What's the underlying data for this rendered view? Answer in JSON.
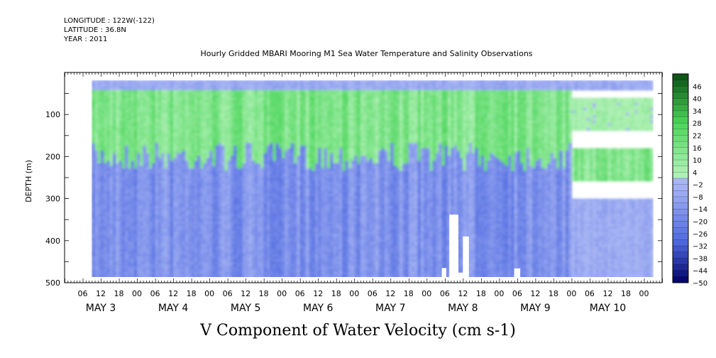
{
  "header": {
    "longitude": "LONGITUDE : 122W(-122)",
    "latitude": "LATITUDE : 36.8N",
    "year": "YEAR : 2011"
  },
  "title": "Hourly Gridded MBARI Mooring M1 Sea Water Temperature and Salinity Observations",
  "bottom_title": "V Component of Water Velocity (cm s-1)",
  "chart_data": {
    "type": "heatmap",
    "title": "Hourly Gridded MBARI Mooring M1 Sea Water Temperature and Salinity Observations",
    "xlabel": "",
    "ylabel": "DEPTH (m)",
    "colorbar_label": "V Component of Water Velocity (cm s-1)",
    "y_reversed": true,
    "ylim": [
      0,
      500
    ],
    "y_ticks": [
      100,
      200,
      300,
      400,
      500
    ],
    "x_start": "2011-05-02T00:00",
    "x_end": "2011-05-10T06:00",
    "data_start": "2011-05-02T09:00",
    "data_end": "2011-05-10T03:00",
    "x_hour_labels": [
      "06",
      "12",
      "18",
      "00",
      "06",
      "12",
      "18",
      "00",
      "06",
      "12",
      "18",
      "00",
      "06",
      "12",
      "18",
      "00",
      "06",
      "12",
      "18",
      "00",
      "06",
      "12",
      "18",
      "00",
      "06",
      "12",
      "18",
      "00",
      "06",
      "12",
      "18",
      "00"
    ],
    "x_day_labels": [
      "MAY  3",
      "MAY  4",
      "MAY  5",
      "MAY  6",
      "MAY  7",
      "MAY  8",
      "MAY  9",
      "MAY 10"
    ],
    "colorbar_ticks": [
      46,
      40,
      34,
      28,
      22,
      16,
      10,
      4,
      -2,
      -8,
      -14,
      -20,
      -26,
      -32,
      -38,
      -44,
      -50
    ],
    "colorbar_range": [
      -50,
      52
    ],
    "colors": {
      "strong_negative": "#000066",
      "mid_negative": "#4f6ae0",
      "weak_negative": "#a9b6f4",
      "weak_positive": "#aff0b5",
      "mid_positive": "#4cd65a",
      "strong_positive": "#0a4f14"
    },
    "depth_bands": [
      {
        "depth_range": [
          20,
          40
        ],
        "sign": "negative",
        "magnitude": "weak",
        "start": "2011-05-02T09:00",
        "end": "2011-05-10T03:00"
      },
      {
        "depth_range": [
          40,
          200
        ],
        "sign": "positive",
        "magnitude": "moderate",
        "start": "2011-05-02T09:00",
        "end": "2011-05-09T00:00"
      },
      {
        "depth_range": [
          200,
          490
        ],
        "sign": "negative",
        "magnitude": "moderate",
        "start": "2011-05-02T09:00",
        "end": "2011-05-09T00:00"
      },
      {
        "depth_range": [
          60,
          140
        ],
        "sign": "positive",
        "magnitude": "weak",
        "start": "2011-05-09T00:00",
        "end": "2011-05-10T03:00"
      },
      {
        "depth_range": [
          180,
          260
        ],
        "sign": "positive",
        "magnitude": "moderate",
        "start": "2011-05-09T00:00",
        "end": "2011-05-10T03:00"
      },
      {
        "depth_range": [
          300,
          490
        ],
        "sign": "negative",
        "magnitude": "weak",
        "start": "2011-05-09T00:00",
        "end": "2011-05-10T03:00"
      }
    ],
    "missing_regions": [
      {
        "start": "2011-05-07T05:00",
        "end": "2011-05-07T06:30",
        "depth_range": [
          465,
          490
        ]
      },
      {
        "start": "2011-05-07T07:30",
        "end": "2011-05-07T10:30",
        "depth_range": [
          338,
          490
        ]
      },
      {
        "start": "2011-05-07T12:00",
        "end": "2011-05-07T14:00",
        "depth_range": [
          390,
          490
        ]
      },
      {
        "start": "2011-05-07T10:30",
        "end": "2011-05-07T12:00",
        "depth_range": [
          476,
          490
        ]
      },
      {
        "start": "2011-05-08T05:00",
        "end": "2011-05-08T07:00",
        "depth_range": [
          466,
          490
        ]
      }
    ]
  }
}
